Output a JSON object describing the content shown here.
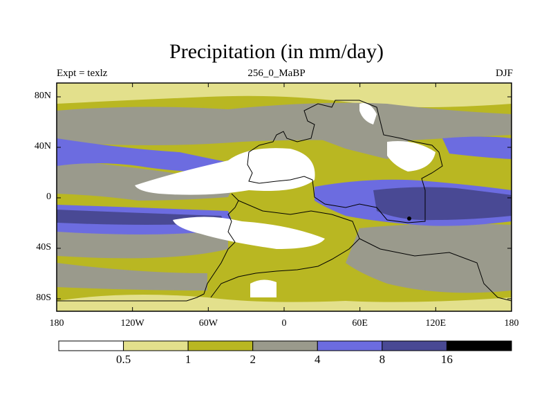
{
  "title": "Precipitation (in mm/day)",
  "experiment": "Expt = texlz",
  "run_label": "256_0_MaBP",
  "season": "DJF",
  "y_ticks": [
    "80N",
    "40N",
    "0",
    "40S",
    "80S"
  ],
  "x_ticks": [
    "180",
    "120W",
    "60W",
    "0",
    "60E",
    "120E",
    "180"
  ],
  "colorbar": {
    "colors": [
      "#ffffff",
      "#e3e08c",
      "#b9b722",
      "#9a9a8c",
      "#6c6ce0",
      "#494994",
      "#000000"
    ],
    "labels": [
      "0.5",
      "1",
      "2",
      "4",
      "8",
      "16"
    ]
  }
}
